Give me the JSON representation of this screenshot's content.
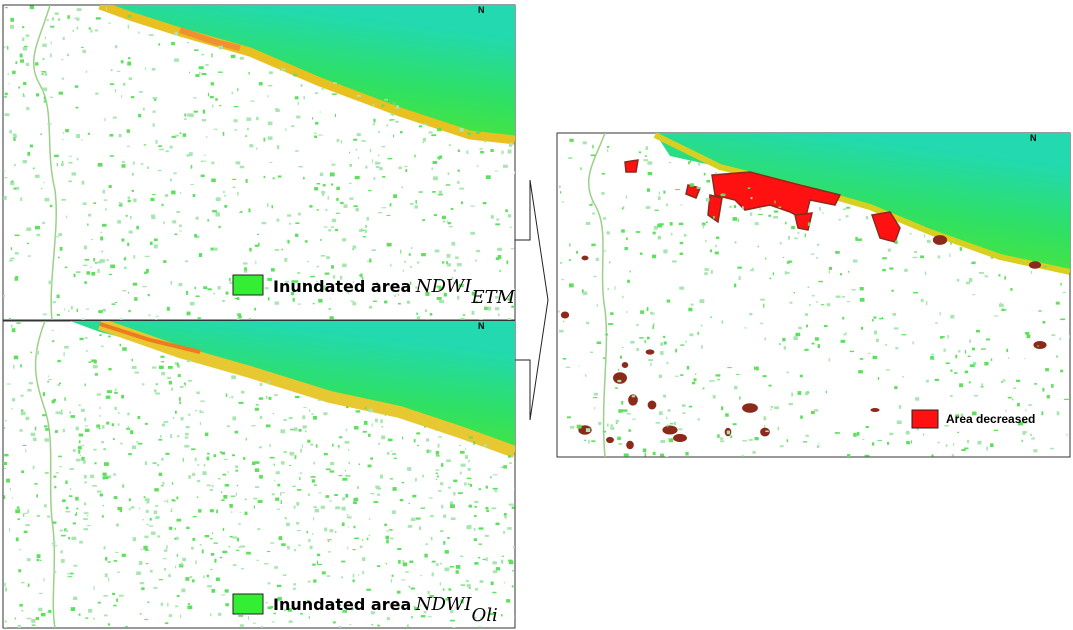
{
  "panels": [
    {
      "north": "N",
      "legend": {
        "label": "Inundated area",
        "index": "NDWI",
        "subscript": "ETM"
      }
    },
    {
      "north": "N",
      "legend": {
        "label": "Inundated area",
        "index": "NDWI",
        "subscript": "Oli"
      }
    }
  ],
  "result": {
    "north": "N",
    "legend": {
      "label": "Area decreased"
    }
  }
}
